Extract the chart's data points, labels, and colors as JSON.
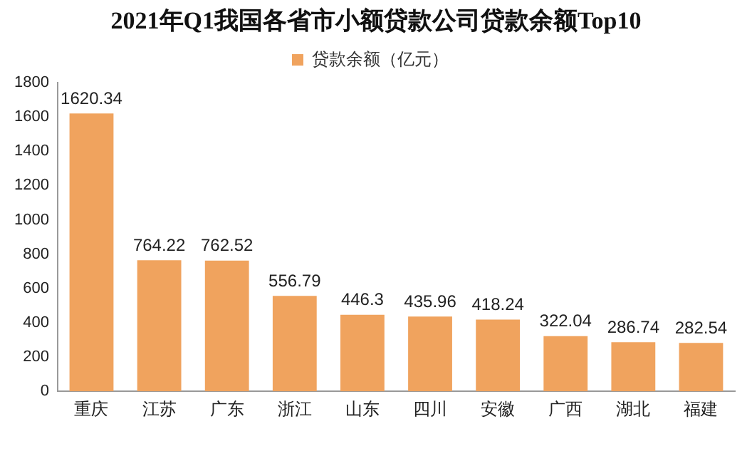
{
  "chart_data": {
    "type": "bar",
    "title": "2021年Q1我国各省市小额贷款公司贷款余额Top10",
    "categories": [
      "重庆",
      "江苏",
      "广东",
      "浙江",
      "山东",
      "四川",
      "安徽",
      "广西",
      "湖北",
      "福建"
    ],
    "series": [
      {
        "name": "贷款余额（亿元）",
        "color": "#f0a35e",
        "values": [
          1620.34,
          764.22,
          762.52,
          556.79,
          446.3,
          435.96,
          418.24,
          322.04,
          286.74,
          282.54
        ]
      }
    ],
    "ylim": [
      0,
      1800
    ],
    "yticks": [
      0,
      200,
      400,
      600,
      800,
      1000,
      1200,
      1400,
      1600,
      1800
    ],
    "grid": false,
    "legend": "top",
    "data_labels": true
  }
}
